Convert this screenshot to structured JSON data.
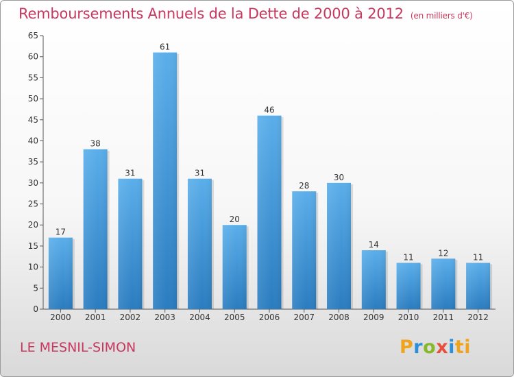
{
  "header": {
    "title": "Remboursements Annuels de la Dette de 2000 à 2012",
    "unit": "(en milliers d'€)"
  },
  "footer": {
    "place": "LE MESNIL-SIMON",
    "logo_text": "Proxiti"
  },
  "colors": {
    "accent": "#c8385e",
    "bar_top": "#5aaeea",
    "bar_bottom": "#2a7cc0"
  },
  "chart_data": {
    "type": "bar",
    "title": "Remboursements Annuels de la Dette de 2000 à 2012",
    "xlabel": "",
    "ylabel": "",
    "categories": [
      "2000",
      "2001",
      "2002",
      "2003",
      "2004",
      "2005",
      "2006",
      "2007",
      "2008",
      "2009",
      "2010",
      "2011",
      "2012"
    ],
    "values": [
      17,
      38,
      31,
      61,
      31,
      20,
      46,
      28,
      30,
      14,
      11,
      12,
      11
    ],
    "ylim": [
      0,
      65
    ],
    "yticks": [
      0,
      5,
      10,
      15,
      20,
      25,
      30,
      35,
      40,
      45,
      50,
      55,
      60,
      65
    ],
    "grid": false,
    "data_labels": true
  }
}
